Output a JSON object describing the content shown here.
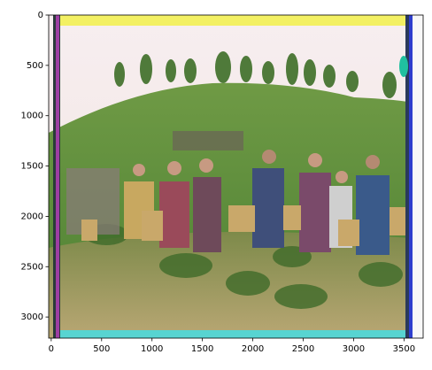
{
  "chart_data": {
    "type": "image",
    "xlim": [
      -25,
      3690
    ],
    "ylim": [
      3210,
      0
    ],
    "xticks": [
      0,
      500,
      1000,
      1500,
      2000,
      2500,
      3000,
      3500
    ],
    "yticks": [
      0,
      500,
      1000,
      1500,
      2000,
      2500,
      3000
    ]
  }
}
